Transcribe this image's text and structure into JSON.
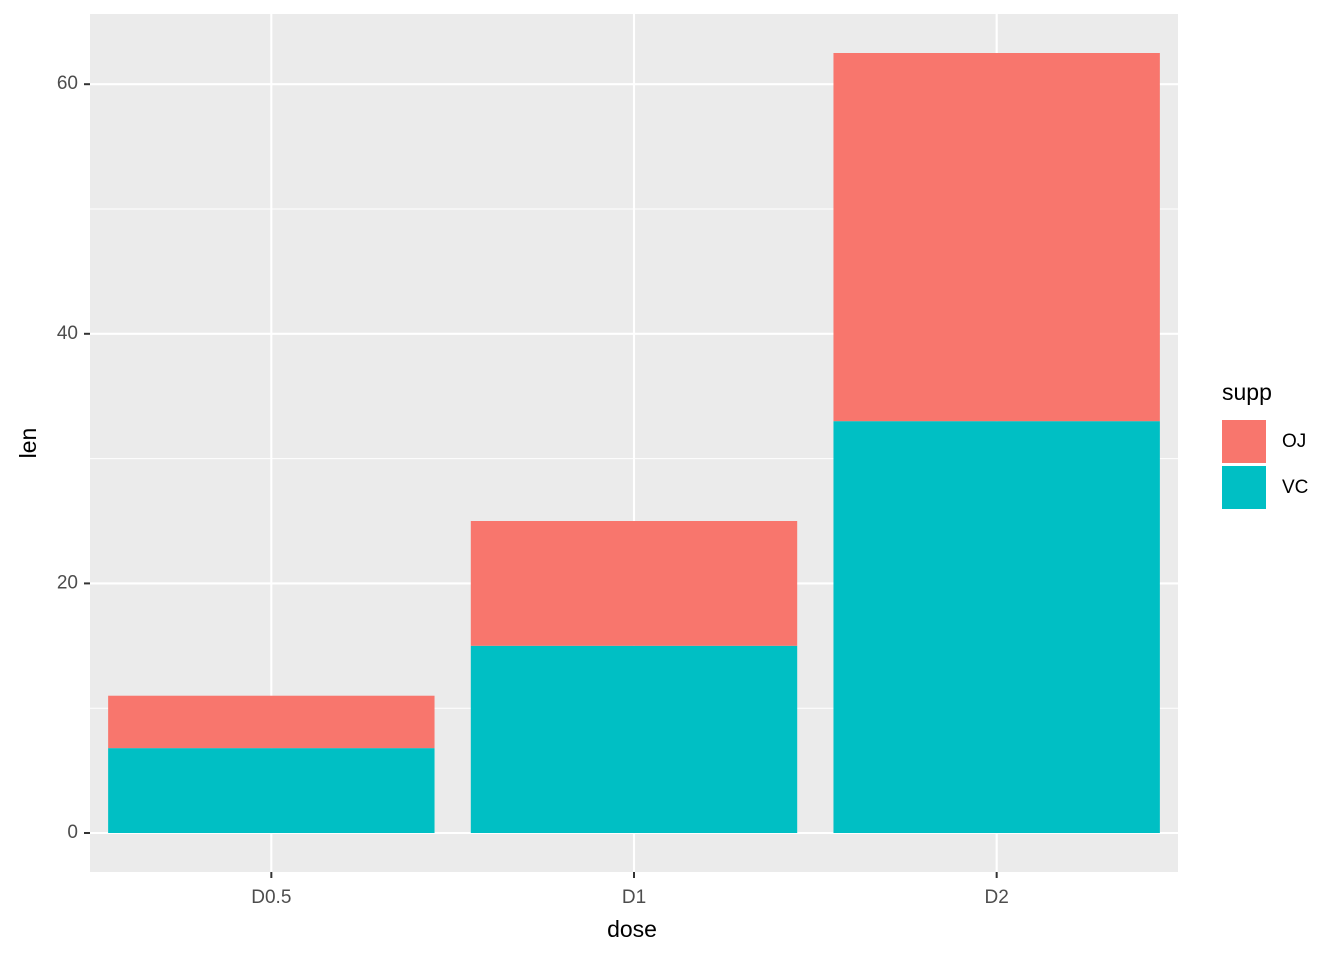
{
  "chart_data": {
    "type": "stacked_bar",
    "x_label": "dose",
    "y_label": "len",
    "categories": [
      "D0.5",
      "D1",
      "D2"
    ],
    "series": [
      {
        "name": "OJ",
        "color": "#F8766D",
        "values": [
          4.2,
          10,
          29.5
        ]
      },
      {
        "name": "VC",
        "color": "#00BFC4",
        "values": [
          6.8,
          15,
          33
        ]
      }
    ],
    "legend_title": "supp",
    "legend": "right",
    "ylim": [
      -3.125,
      65.625
    ],
    "yticks": [
      0,
      20,
      40,
      60
    ],
    "minor_yticks": [
      10,
      30,
      50
    ],
    "grid": true
  }
}
